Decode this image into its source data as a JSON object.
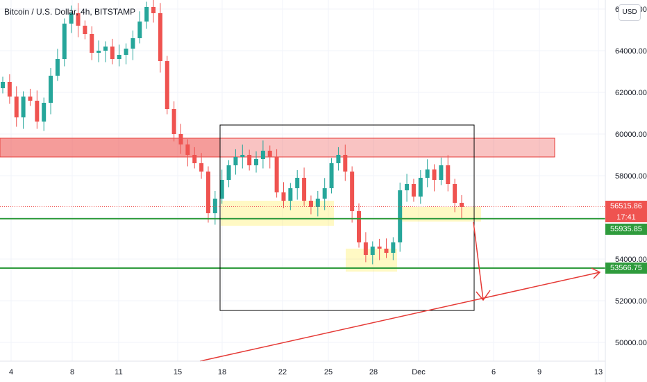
{
  "header": {
    "title": "Bitcoin / U.S. Dollar, 4h, BITSTAMP"
  },
  "currency_button": {
    "label": "USD"
  },
  "price_tags": {
    "last_price": "56515.86",
    "countdown": "17:41",
    "level_1": "55935.85",
    "level_2": "53566.75"
  },
  "colors": {
    "up": "#26a69a",
    "down": "#ef5350",
    "level": "#2e9b3c",
    "annotation": "#e53935",
    "zone": "#ffeb3b"
  },
  "chart_data": {
    "type": "candlestick",
    "title": "Bitcoin / U.S. Dollar, 4h, BITSTAMP",
    "xlabel": "",
    "ylabel": "",
    "x_tick_labels": [
      "4",
      "8",
      "11",
      "15",
      "18",
      "22",
      "25",
      "28",
      "Dec",
      "6",
      "9",
      "13"
    ],
    "y_tick_labels": [
      "50000.00",
      "52000.00",
      "54000.00",
      "56000.00",
      "58000.00",
      "60000.00",
      "62000.00",
      "64000.00",
      "66000.00"
    ],
    "ylim": [
      49200,
      66400
    ],
    "grid": true,
    "series": [
      {
        "values": [
          62500,
          61800,
          60800,
          61800,
          61600,
          60600,
          61500,
          62800,
          63600,
          65300,
          65800,
          65200,
          64800,
          63900,
          64000,
          64200,
          63600,
          63800,
          64100,
          64600,
          65400,
          66100,
          65800,
          63500,
          61200,
          60000,
          59500,
          59000,
          58600,
          58200,
          56200,
          56900,
          57800,
          58500,
          58900,
          59000,
          58500,
          58800,
          59200,
          58900,
          57200,
          56800,
          57400,
          57900,
          56800,
          56500,
          56900,
          57400,
          58600,
          59000,
          58200,
          56300,
          54800,
          54200,
          54600,
          54500,
          54300,
          54800,
          57300,
          57600,
          57000,
          57900,
          58300,
          57800,
          58500,
          57600,
          56700,
          56500
        ]
      }
    ],
    "levels": [
      55935.85,
      53566.75
    ],
    "last_price": 56515.86,
    "resistance_zone": [
      58900,
      59800
    ],
    "support_zones": [
      [
        55600,
        56800
      ],
      [
        53400,
        54500
      ],
      [
        55800,
        56500
      ]
    ]
  }
}
